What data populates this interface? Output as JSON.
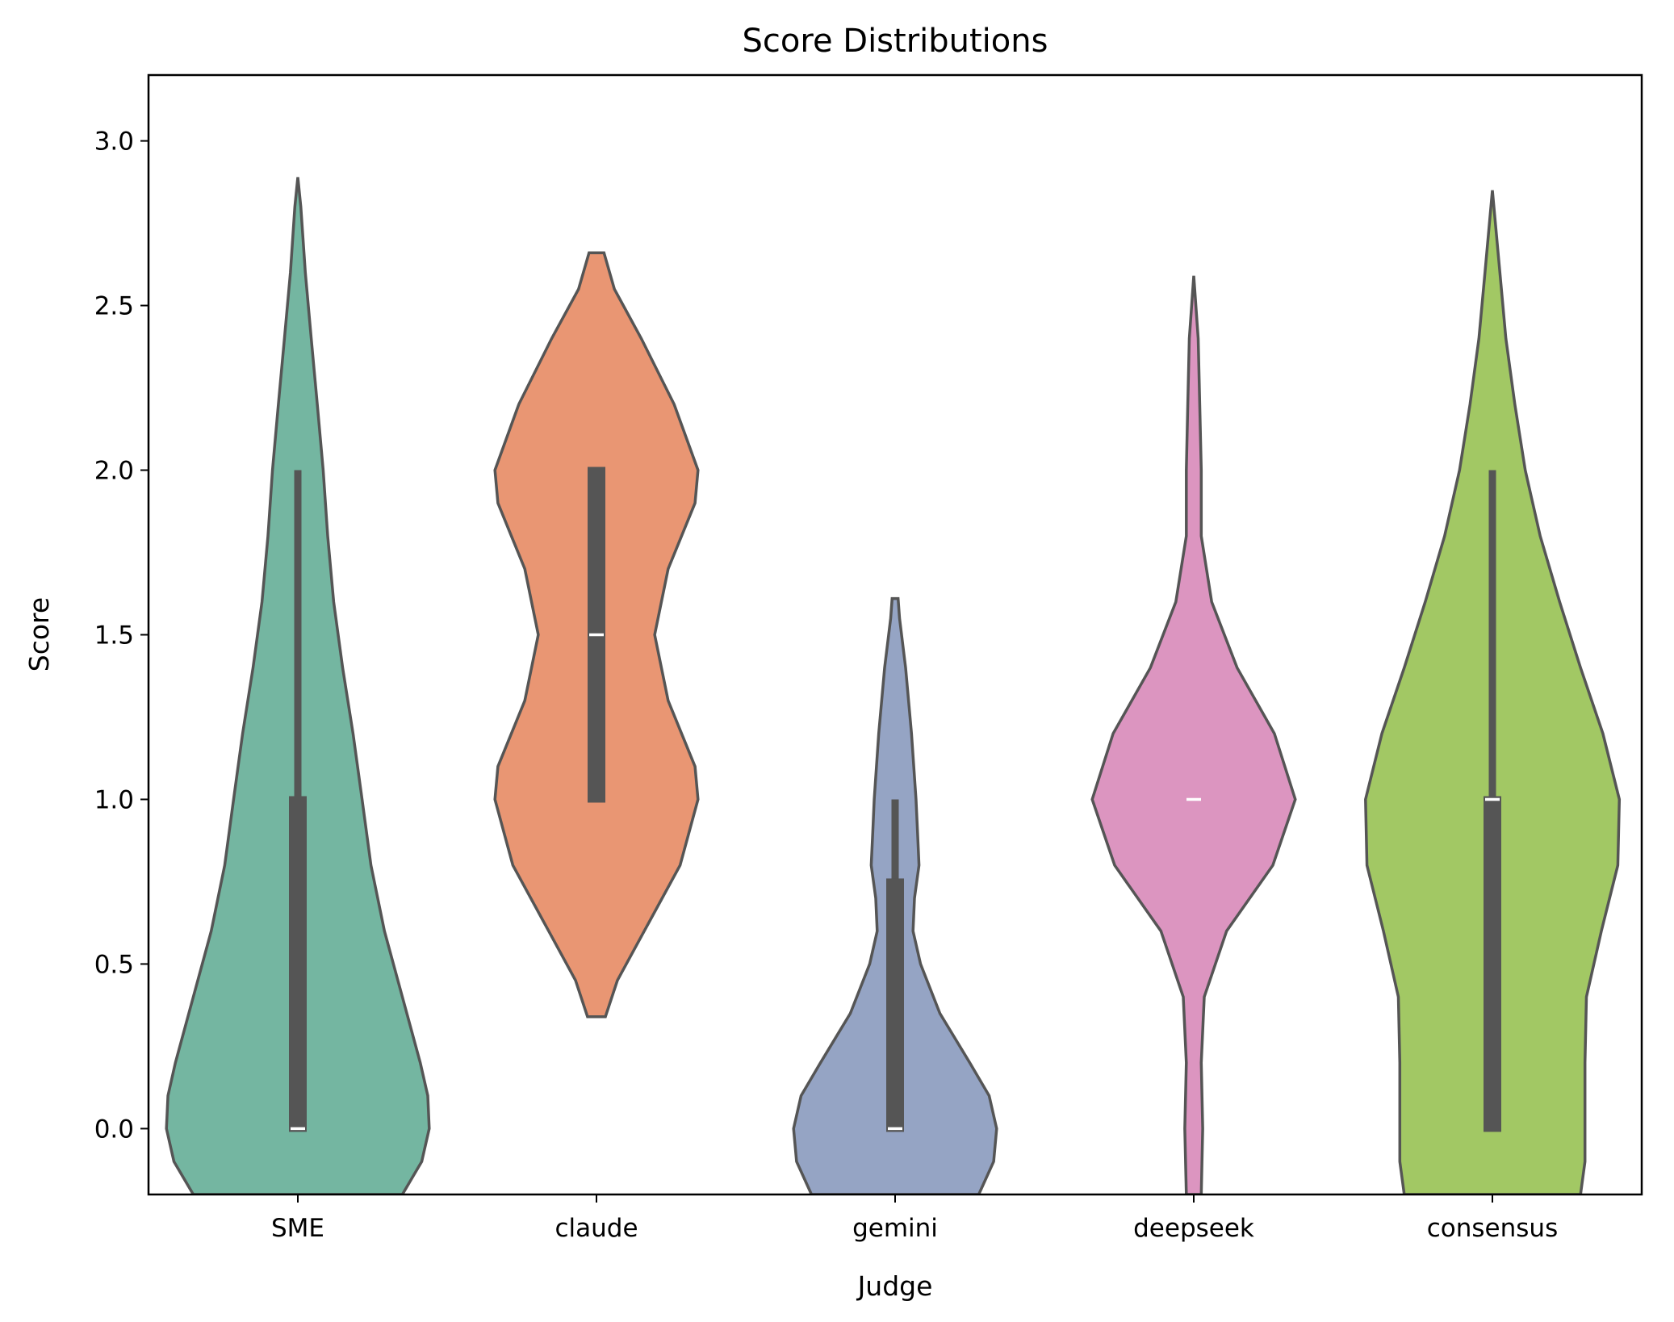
{
  "chart_data": {
    "type": "violin",
    "title": "Score Distributions",
    "xlabel": "Judge",
    "ylabel": "Score",
    "ylim": [
      -0.2,
      3.2
    ],
    "yticks": [
      "0.0",
      "0.5",
      "1.0",
      "1.5",
      "2.0",
      "2.5",
      "3.0"
    ],
    "grid": false,
    "categories": [
      "SME",
      "claude",
      "gemini",
      "deepseek",
      "consensus"
    ],
    "colors": [
      "#74b6a1",
      "#e99673",
      "#95a4c4",
      "#dc95c0",
      "#a2c864"
    ],
    "violins": [
      {
        "category": "SME",
        "median": 0,
        "q1": 0,
        "q3": 1,
        "whisker_low": 0,
        "whisker_high": 2,
        "density_profile": [
          [
            -0.2,
            0.7
          ],
          [
            -0.1,
            0.83
          ],
          [
            0.0,
            0.88
          ],
          [
            0.1,
            0.87
          ],
          [
            0.2,
            0.82
          ],
          [
            0.4,
            0.7
          ],
          [
            0.6,
            0.58
          ],
          [
            0.8,
            0.49
          ],
          [
            1.0,
            0.43
          ],
          [
            1.2,
            0.37
          ],
          [
            1.4,
            0.3
          ],
          [
            1.6,
            0.24
          ],
          [
            1.8,
            0.2
          ],
          [
            2.0,
            0.17
          ],
          [
            2.2,
            0.13
          ],
          [
            2.4,
            0.09
          ],
          [
            2.6,
            0.05
          ],
          [
            2.8,
            0.02
          ],
          [
            2.89,
            0.0
          ]
        ]
      },
      {
        "category": "claude",
        "median": 1.5,
        "q1": 1,
        "q3": 2,
        "whisker_low": 1,
        "whisker_high": 2,
        "density_profile": [
          [
            0.34,
            0.06
          ],
          [
            0.45,
            0.14
          ],
          [
            0.6,
            0.32
          ],
          [
            0.8,
            0.56
          ],
          [
            1.0,
            0.68
          ],
          [
            1.1,
            0.66
          ],
          [
            1.3,
            0.48
          ],
          [
            1.5,
            0.39
          ],
          [
            1.7,
            0.48
          ],
          [
            1.9,
            0.66
          ],
          [
            2.0,
            0.68
          ],
          [
            2.2,
            0.52
          ],
          [
            2.4,
            0.3
          ],
          [
            2.55,
            0.12
          ],
          [
            2.66,
            0.05
          ]
        ]
      },
      {
        "category": "gemini",
        "median": 0,
        "q1": 0,
        "q3": 0.75,
        "whisker_low": 0,
        "whisker_high": 1,
        "density_profile": [
          [
            -0.2,
            0.56
          ],
          [
            -0.1,
            0.66
          ],
          [
            0.0,
            0.68
          ],
          [
            0.1,
            0.63
          ],
          [
            0.2,
            0.5
          ],
          [
            0.35,
            0.3
          ],
          [
            0.5,
            0.17
          ],
          [
            0.6,
            0.12
          ],
          [
            0.7,
            0.13
          ],
          [
            0.8,
            0.16
          ],
          [
            0.9,
            0.15
          ],
          [
            1.0,
            0.14
          ],
          [
            1.2,
            0.11
          ],
          [
            1.4,
            0.07
          ],
          [
            1.55,
            0.03
          ],
          [
            1.61,
            0.02
          ]
        ]
      },
      {
        "category": "deepseek",
        "median": 1,
        "q1": 1,
        "q3": 1,
        "whisker_low": 1,
        "whisker_high": 1,
        "density_profile": [
          [
            -0.2,
            0.05
          ],
          [
            0.0,
            0.06
          ],
          [
            0.2,
            0.05
          ],
          [
            0.4,
            0.07
          ],
          [
            0.6,
            0.22
          ],
          [
            0.8,
            0.53
          ],
          [
            1.0,
            0.68
          ],
          [
            1.2,
            0.54
          ],
          [
            1.4,
            0.29
          ],
          [
            1.6,
            0.12
          ],
          [
            1.8,
            0.05
          ],
          [
            2.0,
            0.05
          ],
          [
            2.2,
            0.04
          ],
          [
            2.4,
            0.03
          ],
          [
            2.59,
            0.0
          ]
        ]
      },
      {
        "category": "consensus",
        "median": 1,
        "q1": 0,
        "q3": 1,
        "whisker_low": 0,
        "whisker_high": 2,
        "density_profile": [
          [
            -0.2,
            0.59
          ],
          [
            -0.1,
            0.62
          ],
          [
            0.0,
            0.62
          ],
          [
            0.2,
            0.62
          ],
          [
            0.4,
            0.63
          ],
          [
            0.6,
            0.73
          ],
          [
            0.8,
            0.84
          ],
          [
            1.0,
            0.85
          ],
          [
            1.2,
            0.74
          ],
          [
            1.4,
            0.59
          ],
          [
            1.6,
            0.45
          ],
          [
            1.8,
            0.32
          ],
          [
            2.0,
            0.22
          ],
          [
            2.2,
            0.15
          ],
          [
            2.4,
            0.09
          ],
          [
            2.6,
            0.05
          ],
          [
            2.85,
            0.0
          ]
        ]
      }
    ]
  }
}
